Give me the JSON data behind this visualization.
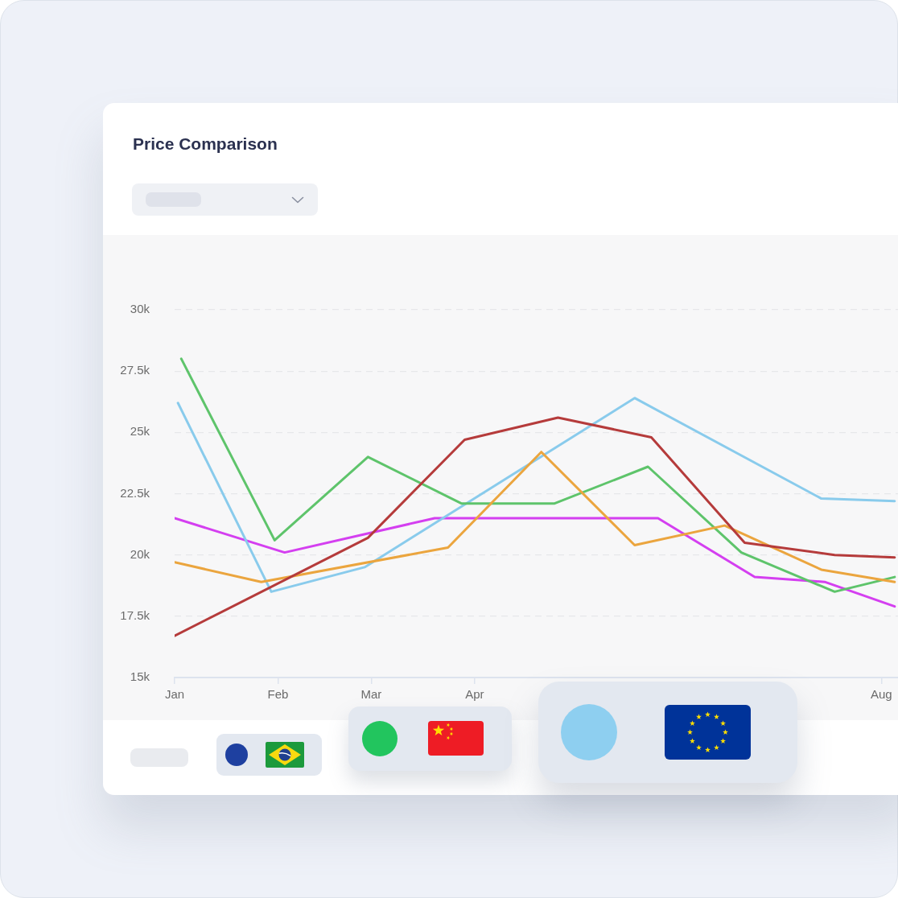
{
  "chart_data": {
    "type": "line",
    "title": "Price Comparison",
    "xlim": [
      "--01-01",
      "--08-06"
    ],
    "xticks": [
      {
        "value": "--01-01",
        "label": "Jan"
      },
      {
        "value": "--02-01",
        "label": "Feb"
      },
      {
        "value": "--03-01",
        "label": "Mar"
      },
      {
        "value": "--04-01",
        "label": "Apr"
      },
      {
        "value": "--08-01",
        "label": "Aug"
      }
    ],
    "ylim": [
      15000,
      30000
    ],
    "yticks": [
      {
        "value": 15000,
        "label": "15k"
      },
      {
        "value": 17500,
        "label": "17.5k"
      },
      {
        "value": 20000,
        "label": "20k"
      },
      {
        "value": 22500,
        "label": "22.5k"
      },
      {
        "value": 25000,
        "label": "25k"
      },
      {
        "value": 27500,
        "label": "27.5k"
      },
      {
        "value": 30000,
        "label": "30k"
      }
    ],
    "grid": "y",
    "series": [
      {
        "color": "#b53b3b",
        "x": [
          "--01-01",
          "--02-28",
          "--03-29",
          "--04-26",
          "--05-24",
          "--06-21",
          "--07-18",
          "--08-05"
        ],
        "values": [
          16700,
          20700,
          24700,
          25600,
          24800,
          20500,
          20000,
          19900
        ]
      },
      {
        "color": "#eba53e",
        "x": [
          "--01-01",
          "--01-27",
          "--03-24",
          "--04-21",
          "--05-19",
          "--06-15",
          "--07-14",
          "--08-05"
        ],
        "values": [
          19700,
          18900,
          20300,
          24200,
          20400,
          21200,
          19400,
          18900
        ]
      },
      {
        "color": "#5ec46b",
        "x": [
          "--01-03",
          "--01-31",
          "--02-28",
          "--03-28",
          "--04-25",
          "--05-23",
          "--06-20",
          "--07-18",
          "--08-05"
        ],
        "values": [
          28000,
          20600,
          24000,
          22100,
          22100,
          23600,
          20100,
          18500,
          19100
        ]
      },
      {
        "color": "#89cbec",
        "x": [
          "--01-02",
          "--01-30",
          "--02-27",
          "--05-19",
          "--07-14",
          "--08-05"
        ],
        "values": [
          26200,
          18500,
          19500,
          26400,
          22300,
          22200
        ]
      },
      {
        "color": "#d43ff0",
        "x": [
          "--01-01",
          "--02-03",
          "--03-20",
          "--05-26",
          "--06-24",
          "--07-15",
          "--08-05"
        ],
        "values": [
          21500,
          20100,
          21500,
          21500,
          19100,
          18900,
          17900
        ]
      }
    ]
  }
}
